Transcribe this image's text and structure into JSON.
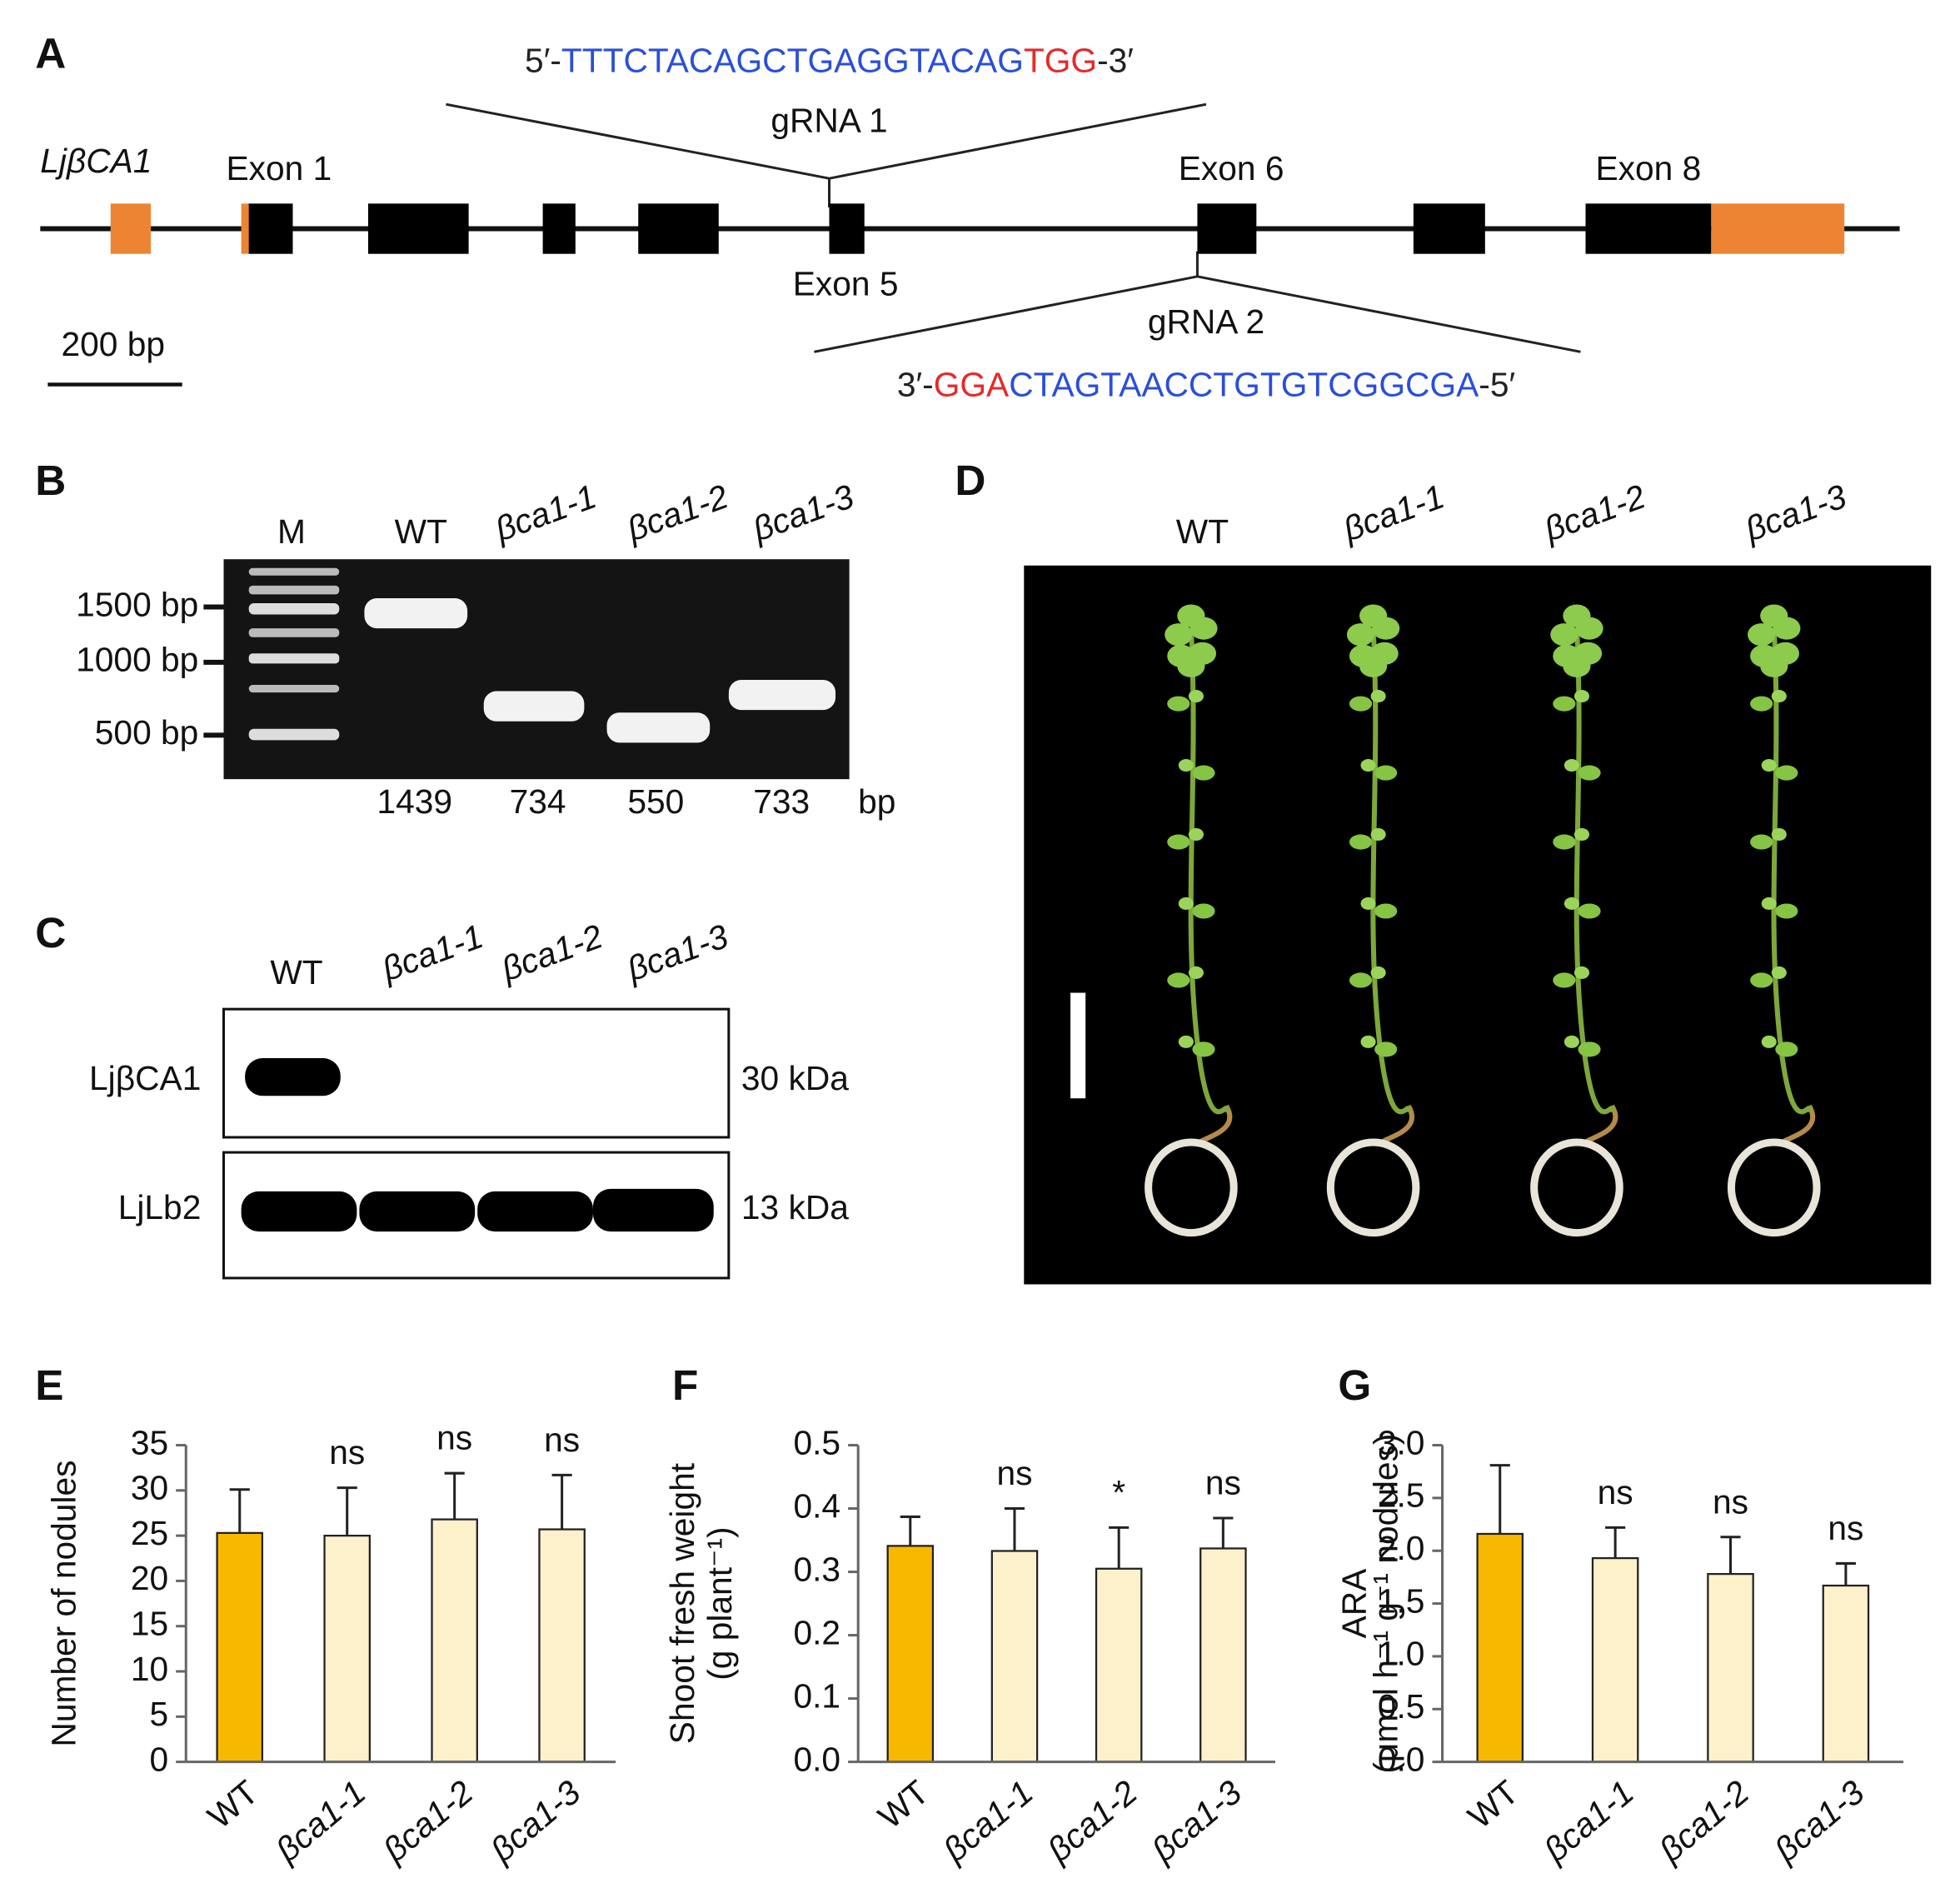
{
  "panel_a": {
    "label": "A",
    "gene": "LjβCA1",
    "exons": [
      "Exon 1",
      "Exon 5",
      "Exon 6",
      "Exon 8"
    ],
    "grna1": {
      "name": "gRNA 1",
      "prefix": "5′-",
      "target": "TTTCTACAGCTGAGGTACAG",
      "pam": "TGG",
      "suffix": "-3′"
    },
    "grna2": {
      "name": "gRNA 2",
      "prefix": "3′-",
      "pam": "GGA",
      "target": "CTAGTAACCTGTGTCGGCGA",
      "suffix": "-5′"
    },
    "scale_bar": "200 bp"
  },
  "panel_b": {
    "label": "B",
    "lanes": [
      "M",
      "WT",
      "βca1-1",
      "βca1-2",
      "βca1-3"
    ],
    "markers": [
      "1500 bp",
      "1000 bp",
      "500 bp"
    ],
    "sizes": [
      1439,
      734,
      550,
      733
    ],
    "size_unit": "bp"
  },
  "panel_c": {
    "label": "C",
    "lanes": [
      "WT",
      "βca1-1",
      "βca1-2",
      "βca1-3"
    ],
    "rows": [
      {
        "name": "LjβCA1",
        "mass": "30 kDa"
      },
      {
        "name": "LjLb2",
        "mass": "13 kDa"
      }
    ]
  },
  "panel_d": {
    "label": "D",
    "lanes": [
      "WT",
      "βca1-1",
      "βca1-2",
      "βca1-3"
    ]
  },
  "chart_data": [
    {
      "type": "bar",
      "panel_label": "E",
      "ylabel": [
        "Number of nodules"
      ],
      "categories": [
        "WT",
        "βca1-1",
        "βca1-2",
        "βca1-3"
      ],
      "values": [
        25.3,
        25.0,
        26.8,
        25.7
      ],
      "errors": [
        4.8,
        5.3,
        5.1,
        6.0
      ],
      "colors": [
        "#f9b800",
        "#fdf1cc",
        "#fdf1cc",
        "#fdf1cc"
      ],
      "significance": [
        null,
        "ns",
        "ns",
        "ns"
      ],
      "ylim": [
        0,
        35
      ],
      "yticks": [
        0,
        5,
        10,
        15,
        20,
        25,
        30,
        35
      ]
    },
    {
      "type": "bar",
      "panel_label": "F",
      "ylabel": [
        "Shoot fresh weight",
        "(g plant⁻¹)"
      ],
      "categories": [
        "WT",
        "βca1-1",
        "βca1-2",
        "βca1-3"
      ],
      "values": [
        0.341,
        0.333,
        0.305,
        0.337
      ],
      "errors": [
        0.046,
        0.067,
        0.065,
        0.048
      ],
      "colors": [
        "#f9b800",
        "#fdf1cc",
        "#fdf1cc",
        "#fdf1cc"
      ],
      "significance": [
        null,
        "ns",
        "*",
        "ns"
      ],
      "ylim": [
        0,
        0.5
      ],
      "yticks": [
        {
          "value": 0,
          "label": "0.0"
        },
        0.1,
        0.2,
        0.3,
        0.4,
        0.5
      ]
    },
    {
      "type": "bar",
      "panel_label": "G",
      "ylabel": [
        "ARA",
        "(μmol h⁻¹ g⁻¹ nodules)"
      ],
      "categories": [
        "WT",
        "βca1-1",
        "βca1-2",
        "βca1-3"
      ],
      "values": [
        2.16,
        1.93,
        1.78,
        1.67
      ],
      "errors": [
        0.65,
        0.29,
        0.35,
        0.21
      ],
      "colors": [
        "#f9b800",
        "#fdf1cc",
        "#fdf1cc",
        "#fdf1cc"
      ],
      "significance": [
        null,
        "ns",
        "ns",
        "ns"
      ],
      "ylim": [
        0,
        3
      ],
      "yticks": [
        {
          "value": 0,
          "label": "0.0"
        },
        0.5,
        {
          "value": 1,
          "label": "1.0"
        },
        1.5,
        {
          "value": 2,
          "label": "2.0"
        },
        2.5,
        {
          "value": 3,
          "label": "3.0"
        }
      ]
    }
  ]
}
